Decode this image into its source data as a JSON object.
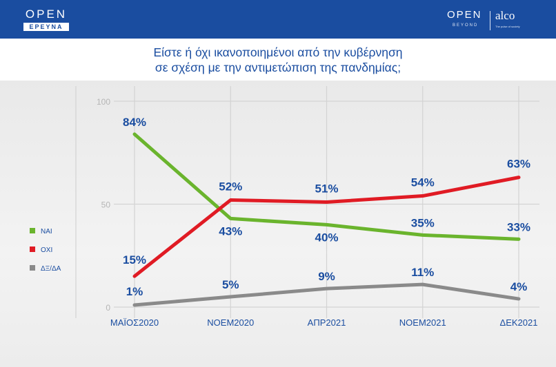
{
  "header": {
    "logo_left_top": "OPEN",
    "logo_left_bottom": "ΕΡΕΥΝΑ",
    "logo_right_open": "OPEN",
    "logo_right_beyond": "BEYOND",
    "logo_right_alco": "alco",
    "logo_right_tagline": "The pulse of society",
    "bar_color": "#1a4da0"
  },
  "chart_data": {
    "type": "line",
    "title": "Είστε ή όχι ικανοποιημένοι από την κυβέρνηση σε σχέση με την αντιμετώπιση της πανδημίας;",
    "title_lines": [
      "Είστε ή όχι ικανοποιημένοι από την κυβέρνηση",
      "σε σχέση με την αντιμετώπιση της πανδημίας;"
    ],
    "categories": [
      "ΜΑΪΟΣ2020",
      "ΝΟΕΜ2020",
      "ΑΠΡ2021",
      "ΝΟΕΜ2021",
      "ΔΕΚ2021"
    ],
    "ylim": [
      0,
      100
    ],
    "yticks": [
      "0",
      "50",
      "100"
    ],
    "grid": true,
    "legend_position": "left",
    "series": [
      {
        "name": "ΝΑΙ",
        "color": "#6ab42d",
        "values": [
          84,
          43,
          40,
          35,
          33
        ],
        "labels": [
          "84%",
          "43%",
          "40%",
          "35%",
          "33%"
        ]
      },
      {
        "name": "ΟΧΙ",
        "color": "#e01b24",
        "values": [
          15,
          52,
          51,
          54,
          63
        ],
        "labels": [
          "15%",
          "52%",
          "51%",
          "54%",
          "63%"
        ]
      },
      {
        "name": "ΔΞ/ΔΑ",
        "color": "#8a8a8a",
        "values": [
          1,
          5,
          9,
          11,
          4
        ],
        "labels": [
          "1%",
          "5%",
          "9%",
          "11%",
          "4%"
        ]
      }
    ]
  }
}
